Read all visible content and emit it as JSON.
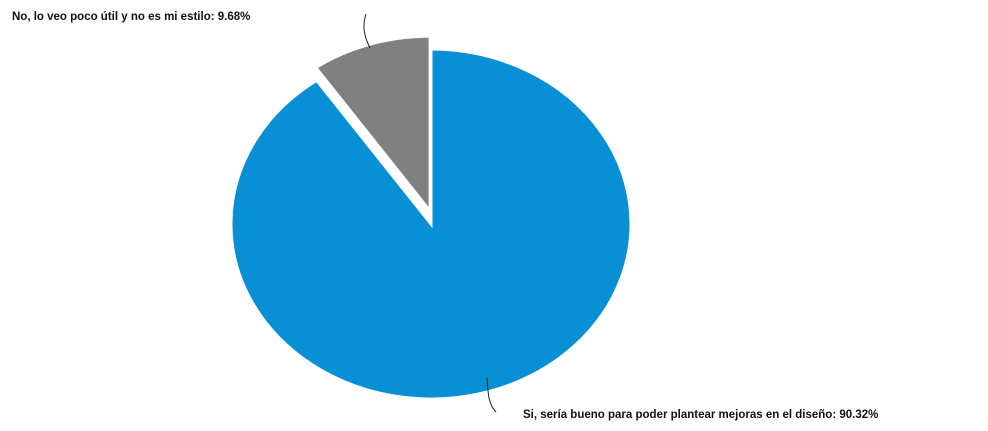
{
  "chart_data": {
    "type": "pie",
    "slices": [
      {
        "label": "Si, sería bueno para poder plantear mejoras en el diseño",
        "value": 90.32,
        "display": "Si, sería bueno para poder plantear mejoras en el diseño: 90.32%",
        "color": "#0790d5"
      },
      {
        "label": "No, lo veo poco útil y no es mi estilo",
        "value": 9.68,
        "display": "No, lo veo poco útil y no es mi estilo: 9.68%",
        "color": "#808080"
      }
    ],
    "exploded_slice": "No, lo veo poco útil y no es mi estilo",
    "legend": "none",
    "border_color": "#ffffff"
  }
}
